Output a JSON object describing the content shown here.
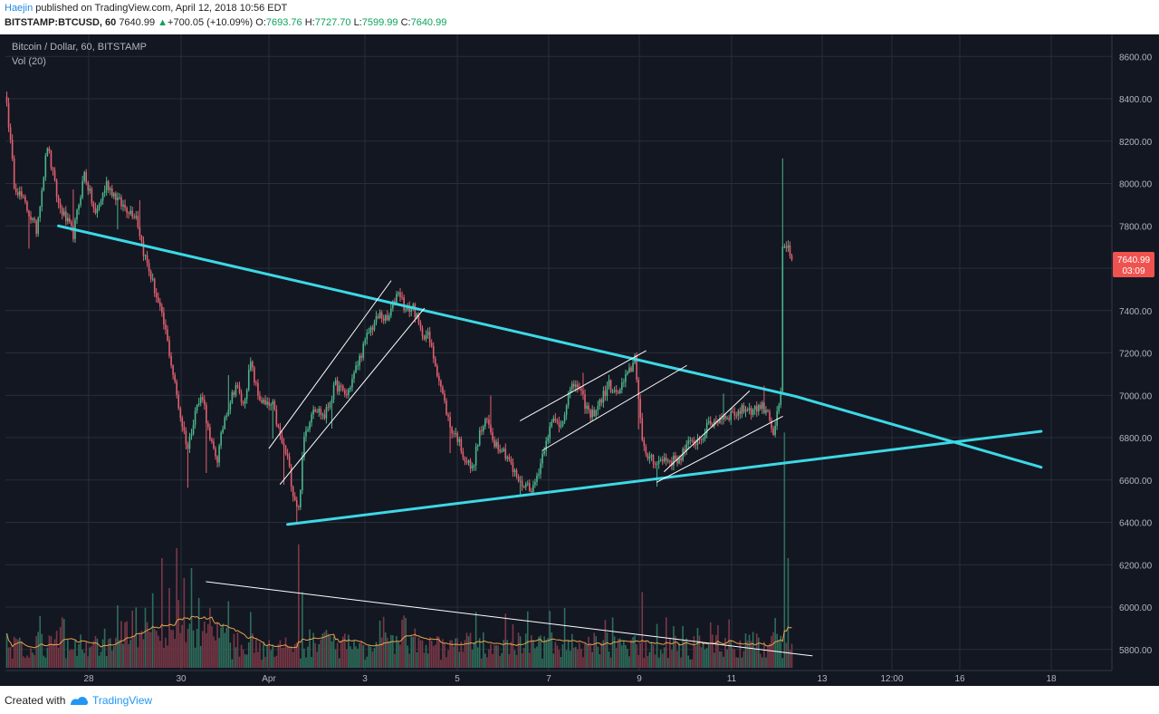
{
  "header": {
    "author": "Haejin",
    "published_text": "published on TradingView.com, April 12, 2018 10:56 EDT",
    "symbol": "BITSTAMP:BTCUSD, 60",
    "last": "7640.99",
    "change_arrow": "▲",
    "change": "+700.05 (+10.09%)",
    "o_label": "O:",
    "o": "7693.76",
    "h_label": "H:",
    "h": "7727.70",
    "l_label": "L:",
    "l": "7599.99",
    "c_label": "C:",
    "c": "7640.99"
  },
  "legend": {
    "title": "Bitcoin / Dollar, 60, BITSTAMP",
    "volume": "Vol (20)"
  },
  "price_badge": {
    "value": "7640.99",
    "countdown": "03:09"
  },
  "footer": {
    "created_with": "Created with",
    "brand": "TradingView"
  },
  "colors": {
    "background": "#131722",
    "grid": "#2a2e39",
    "up": "#4bb58a",
    "down": "#e0606e",
    "trendline": "#3dd8e6",
    "channel": "#ffffff",
    "volume_ma": "#e8a24e",
    "badge": "#ef5350"
  },
  "chart_data": {
    "type": "candlestick",
    "title": "Bitcoin / Dollar, 60, BITSTAMP",
    "ylim": [
      5700,
      8700
    ],
    "price_ticks": [
      "8600.00",
      "8400.00",
      "8200.00",
      "8000.00",
      "7800.00",
      "7600.00",
      "7400.00",
      "7200.00",
      "7000.00",
      "6800.00",
      "6600.00",
      "6400.00",
      "6200.00",
      "6000.00",
      "5800.00"
    ],
    "x_ticks": [
      "28",
      "30",
      "Apr",
      "3",
      "5",
      "7",
      "9",
      "11",
      "13",
      "12:00",
      "16",
      "18"
    ],
    "last_close": 7640.99,
    "anchors": [
      [
        0,
        8380
      ],
      [
        4,
        8000
      ],
      [
        10,
        7900
      ],
      [
        16,
        7780
      ],
      [
        22,
        8180
      ],
      [
        28,
        7900
      ],
      [
        36,
        7760
      ],
      [
        42,
        8050
      ],
      [
        48,
        7850
      ],
      [
        54,
        8000
      ],
      [
        62,
        7900
      ],
      [
        70,
        7850
      ],
      [
        74,
        7680
      ],
      [
        80,
        7500
      ],
      [
        86,
        7300
      ],
      [
        90,
        7100
      ],
      [
        94,
        6900
      ],
      [
        98,
        6750
      ],
      [
        102,
        6930
      ],
      [
        106,
        7000
      ],
      [
        110,
        6780
      ],
      [
        114,
        6700
      ],
      [
        118,
        6900
      ],
      [
        124,
        7050
      ],
      [
        128,
        6950
      ],
      [
        132,
        7150
      ],
      [
        136,
        7000
      ],
      [
        140,
        6950
      ],
      [
        144,
        6950
      ],
      [
        148,
        6800
      ],
      [
        152,
        6700
      ],
      [
        155,
        6540
      ],
      [
        158,
        6460
      ],
      [
        161,
        6800
      ],
      [
        166,
        6950
      ],
      [
        172,
        6900
      ],
      [
        178,
        7050
      ],
      [
        184,
        7000
      ],
      [
        190,
        7150
      ],
      [
        196,
        7300
      ],
      [
        202,
        7380
      ],
      [
        206,
        7350
      ],
      [
        210,
        7450
      ],
      [
        212,
        7500
      ],
      [
        216,
        7400
      ],
      [
        220,
        7420
      ],
      [
        224,
        7300
      ],
      [
        228,
        7280
      ],
      [
        232,
        7150
      ],
      [
        236,
        7000
      ],
      [
        240,
        6850
      ],
      [
        244,
        6800
      ],
      [
        248,
        6700
      ],
      [
        252,
        6650
      ],
      [
        256,
        6820
      ],
      [
        260,
        6880
      ],
      [
        264,
        6780
      ],
      [
        268,
        6750
      ],
      [
        272,
        6700
      ],
      [
        274,
        6640
      ],
      [
        276,
        6620
      ],
      [
        278,
        6580
      ],
      [
        281,
        6580
      ],
      [
        285,
        6560
      ],
      [
        289,
        6680
      ],
      [
        292,
        6800
      ],
      [
        296,
        6880
      ],
      [
        300,
        6860
      ],
      [
        304,
        7000
      ],
      [
        308,
        7060
      ],
      [
        312,
        6980
      ],
      [
        316,
        6900
      ],
      [
        320,
        6950
      ],
      [
        326,
        7050
      ],
      [
        330,
        7000
      ],
      [
        334,
        7060
      ],
      [
        338,
        7130
      ],
      [
        340,
        7180
      ],
      [
        342,
        7000
      ],
      [
        344,
        6780
      ],
      [
        346,
        6700
      ],
      [
        348,
        6720
      ],
      [
        352,
        6680
      ],
      [
        356,
        6700
      ],
      [
        360,
        6690
      ],
      [
        364,
        6700
      ],
      [
        368,
        6760
      ],
      [
        372,
        6780
      ],
      [
        376,
        6800
      ],
      [
        380,
        6860
      ],
      [
        384,
        6880
      ],
      [
        388,
        6900
      ],
      [
        392,
        6910
      ],
      [
        396,
        6920
      ],
      [
        400,
        6940
      ],
      [
        404,
        6930
      ],
      [
        408,
        6950
      ],
      [
        412,
        6930
      ],
      [
        415,
        6820
      ],
      [
        417,
        6900
      ],
      [
        419,
        7000
      ],
      [
        420,
        7690
      ],
      [
        423,
        7700
      ],
      [
        425,
        7641
      ]
    ],
    "spikes": [
      [
        12,
        -140
      ],
      [
        36,
        160
      ],
      [
        60,
        -120
      ],
      [
        72,
        110
      ],
      [
        98,
        -180
      ],
      [
        108,
        -210
      ],
      [
        120,
        150
      ],
      [
        144,
        -140
      ],
      [
        150,
        -170
      ],
      [
        157,
        -60
      ],
      [
        176,
        -100
      ],
      [
        240,
        -110
      ],
      [
        262,
        120
      ],
      [
        278,
        -70
      ],
      [
        312,
        80
      ],
      [
        342,
        -120
      ],
      [
        352,
        -90
      ],
      [
        388,
        80
      ],
      [
        410,
        70
      ],
      [
        420,
        400
      ]
    ],
    "volume_baseline": 5720,
    "volume_scale_per_unit": 14,
    "volume_spikes": [
      [
        84,
        55
      ],
      [
        88,
        40
      ],
      [
        92,
        60
      ],
      [
        96,
        45
      ],
      [
        100,
        50
      ],
      [
        104,
        35
      ],
      [
        110,
        30
      ],
      [
        132,
        28
      ],
      [
        158,
        62
      ],
      [
        160,
        38
      ],
      [
        216,
        25
      ],
      [
        254,
        28
      ],
      [
        302,
        30
      ],
      [
        344,
        38
      ],
      [
        352,
        22
      ],
      [
        374,
        20
      ],
      [
        416,
        25
      ],
      [
        421,
        118
      ],
      [
        423,
        55
      ]
    ],
    "drawings": {
      "triangle_top": [
        [
          28,
          7800
        ],
        [
          427,
          6995
        ],
        [
          560,
          6660
        ]
      ],
      "triangle_bottom": [
        [
          152,
          6390
        ],
        [
          560,
          6830
        ]
      ],
      "channel_1": [
        [
          [
            142,
            6750
          ],
          [
            208,
            7540
          ]
        ],
        [
          [
            148,
            6580
          ],
          [
            226,
            7410
          ]
        ]
      ],
      "channel_2": [
        [
          [
            278,
            6880
          ],
          [
            346,
            7210
          ]
        ],
        [
          [
            290,
            6740
          ],
          [
            368,
            7140
          ]
        ]
      ],
      "channel_3": [
        [
          [
            356,
            6640
          ],
          [
            402,
            7020
          ]
        ],
        [
          [
            352,
            6590
          ],
          [
            420,
            6900
          ]
        ]
      ],
      "volume_trend": [
        [
          108,
          6120
        ],
        [
          436,
          5770
        ]
      ]
    }
  }
}
